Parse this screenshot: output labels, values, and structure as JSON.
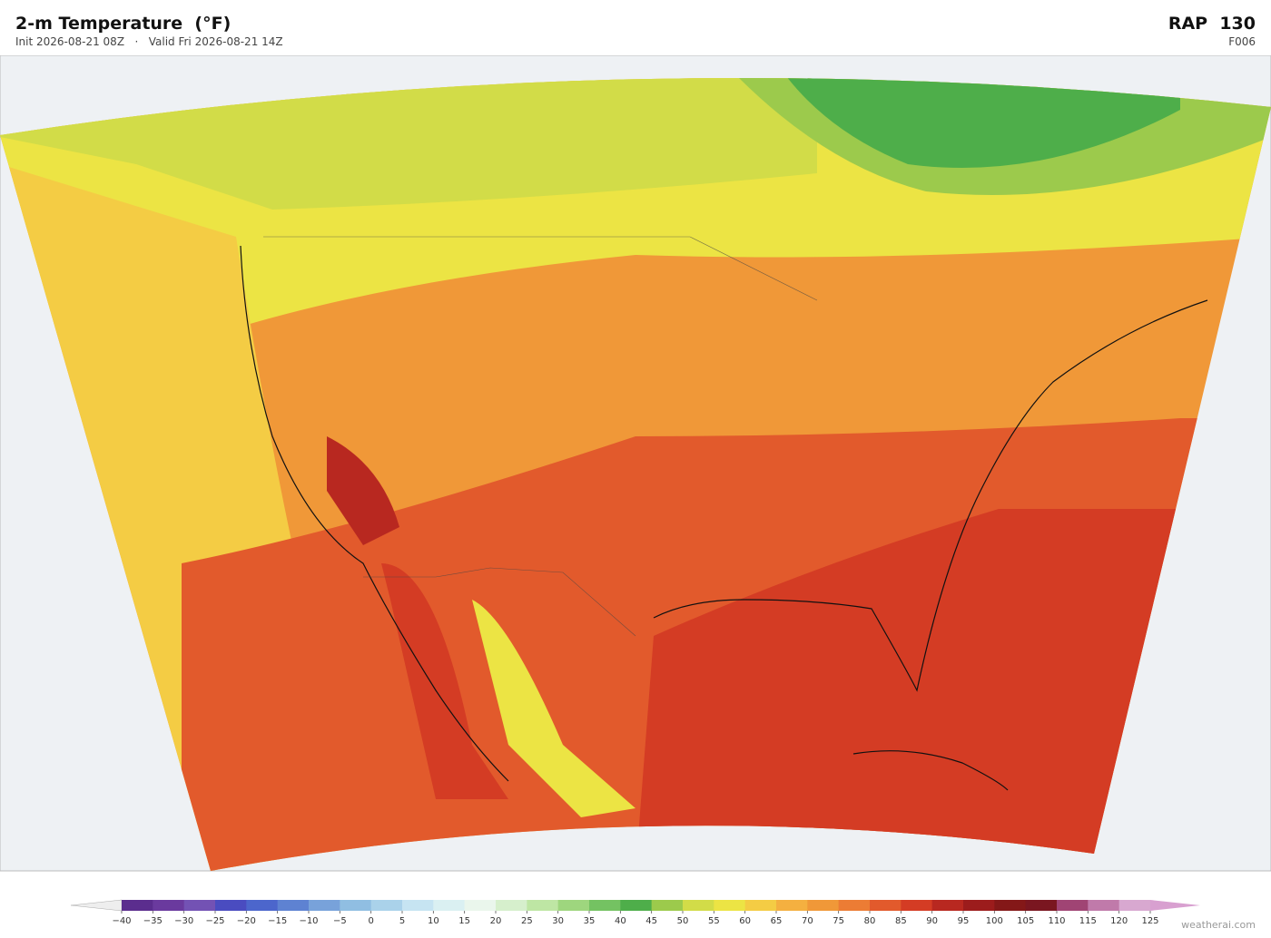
{
  "header": {
    "title": "2-m Temperature  (°F)",
    "subtitle": "Init 2026-08-21 08Z   ·   Valid Fri 2026-08-21 14Z",
    "model": "RAP  130",
    "forecast_hour": "F006"
  },
  "colorbar": {
    "ticks": [
      {
        "value": -40,
        "label": "−40"
      },
      {
        "value": -35,
        "label": "−35"
      },
      {
        "value": -30,
        "label": "−30"
      },
      {
        "value": -25,
        "label": "−25"
      },
      {
        "value": -20,
        "label": "−20"
      },
      {
        "value": -15,
        "label": "−15"
      },
      {
        "value": -10,
        "label": "−10"
      },
      {
        "value": -5,
        "label": "−5"
      },
      0,
      5,
      10,
      15,
      20,
      25,
      30,
      35,
      40,
      45,
      50,
      55,
      60,
      65,
      70,
      75,
      80,
      85,
      90,
      95,
      100,
      105,
      110,
      115,
      120,
      125
    ],
    "colors": [
      "#5b2d8e",
      "#6a3a9e",
      "#7352b4",
      "#4a4cc0",
      "#4c66cc",
      "#5e82d2",
      "#78a2da",
      "#90bee2",
      "#aad2ea",
      "#c6e4f2",
      "#daf0f2",
      "#eaf6ec",
      "#d6efcc",
      "#bee6a4",
      "#9ed67e",
      "#74c262",
      "#4eae4a",
      "#9cca4c",
      "#d2dc48",
      "#ece444",
      "#f4cc44",
      "#f4b040",
      "#f09838",
      "#ec7c34",
      "#e25a2c",
      "#d43c24",
      "#b82820",
      "#9c1c1c",
      "#841818",
      "#7a1620",
      "#a04474",
      "#c07aaa",
      "#d8a8d0"
    ],
    "under_color": "#eeeeee",
    "over_color": "#d8a0d0"
  },
  "watermark": "weatherai.com"
}
